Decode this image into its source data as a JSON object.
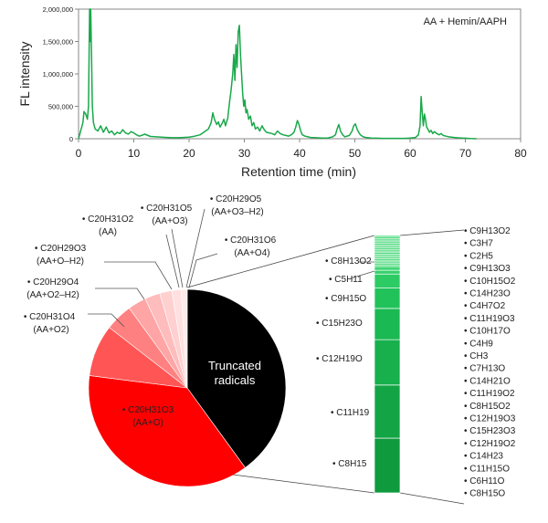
{
  "chart_data": [
    {
      "type": "line",
      "xlabel": "Retention time (min)",
      "ylabel": "FL intensity",
      "legend": "AA + Hemin/AAPH",
      "legend_position": "top-right",
      "xlim": [
        0,
        80
      ],
      "ylim": [
        0,
        2000000
      ],
      "x_ticks": [
        0,
        10,
        20,
        30,
        40,
        50,
        60,
        70,
        80
      ],
      "y_ticks": [
        0,
        500000,
        1000000,
        1500000,
        2000000
      ],
      "x_tick_labels": [
        "0",
        "10",
        "20",
        "30",
        "40",
        "50",
        "60",
        "70",
        "80"
      ],
      "y_tick_labels": [
        "0",
        "500,000",
        "1,000,000",
        "1,500,000",
        "2,000,000"
      ],
      "grid": false,
      "color": "#19a84a",
      "series": [
        {
          "x": [
            0,
            0.8,
            1.0,
            1.3,
            1.6,
            1.8,
            2.0,
            2.1,
            2.2,
            2.35,
            2.5,
            2.7,
            3.0,
            3.5,
            4.0,
            4.5,
            5.0,
            5.5,
            6.0,
            6.5,
            7.0,
            7.5,
            8.0,
            8.5,
            9.0,
            9.5,
            10.0,
            10.5,
            11.0,
            12.0,
            13.0,
            14.0,
            15.0,
            16.0,
            17.0,
            18.0,
            19.0,
            20.0,
            21.0,
            22.0,
            22.5,
            23.0,
            23.5,
            24.0,
            24.3,
            24.6,
            25.0,
            25.3,
            25.6,
            26.0,
            26.3,
            26.6,
            27.0,
            27.3,
            27.6,
            27.9,
            28.1,
            28.3,
            28.5,
            28.7,
            28.9,
            29.1,
            29.3,
            29.5,
            29.7,
            29.9,
            30.1,
            30.3,
            30.5,
            30.8,
            31.1,
            31.4,
            31.7,
            32.0,
            32.4,
            32.8,
            33.2,
            33.6,
            34.0,
            34.5,
            35.0,
            35.5,
            36.0,
            36.5,
            37.0,
            37.5,
            38.0,
            38.5,
            39.0,
            39.3,
            39.6,
            39.9,
            40.2,
            40.5,
            41.0,
            41.5,
            42.0,
            43.0,
            44.0,
            45.0,
            46.0,
            46.5,
            46.8,
            47.1,
            47.4,
            47.8,
            48.2,
            49.0,
            49.5,
            49.8,
            50.1,
            50.4,
            50.7,
            51.0,
            51.5,
            52.0,
            53.0,
            54.0,
            55.0,
            56.0,
            57.0,
            58.0,
            59.0,
            60.0,
            61.0,
            61.5,
            61.8,
            62.0,
            62.2,
            62.4,
            62.6,
            62.8,
            63.0,
            63.2,
            63.5,
            63.8,
            64.1,
            64.4,
            64.7,
            65.0,
            65.3,
            65.6,
            66.0,
            66.5,
            67.0,
            67.5,
            68.0,
            68.5,
            69.0,
            69.5,
            70.0,
            70.5,
            71.0,
            71.5,
            72.0
          ],
          "y": [
            0,
            250000,
            420000,
            380000,
            300000,
            500000,
            2000000,
            1500000,
            2000000,
            1300000,
            500000,
            250000,
            150000,
            120000,
            200000,
            100000,
            180000,
            90000,
            120000,
            60000,
            100000,
            80000,
            140000,
            90000,
            70000,
            110000,
            90000,
            60000,
            40000,
            70000,
            35000,
            30000,
            25000,
            20000,
            15000,
            15000,
            20000,
            25000,
            40000,
            60000,
            90000,
            120000,
            150000,
            250000,
            400000,
            300000,
            220000,
            260000,
            180000,
            240000,
            300000,
            200000,
            320000,
            550000,
            750000,
            1000000,
            1300000,
            900000,
            1450000,
            1100000,
            1650000,
            1750000,
            1300000,
            1000000,
            700000,
            500000,
            600000,
            400000,
            450000,
            300000,
            350000,
            200000,
            250000,
            150000,
            180000,
            120000,
            200000,
            140000,
            100000,
            90000,
            80000,
            60000,
            120000,
            80000,
            60000,
            50000,
            40000,
            60000,
            100000,
            180000,
            280000,
            220000,
            120000,
            60000,
            40000,
            30000,
            20000,
            15000,
            10000,
            10000,
            30000,
            60000,
            150000,
            220000,
            120000,
            60000,
            30000,
            50000,
            120000,
            200000,
            230000,
            150000,
            100000,
            60000,
            30000,
            20000,
            10000,
            8000,
            5000,
            5000,
            5000,
            5000,
            5000,
            10000,
            20000,
            60000,
            200000,
            650000,
            400000,
            200000,
            380000,
            300000,
            180000,
            150000,
            100000,
            130000,
            80000,
            110000,
            90000,
            70000,
            60000,
            80000,
            50000,
            40000,
            30000,
            25000,
            20000,
            15000,
            12000,
            10000,
            8000,
            5000,
            3000,
            2000,
            0
          ]
        }
      ]
    },
    {
      "type": "pie",
      "labels": [
        "Truncated radicals",
        "C20H31O3 (AA+O)",
        "C20H31O4 (AA+O2)",
        "C20H29O4 (AA+O2–H2)",
        "C20H29O3 (AA+O–H2)",
        "C20H31O2 (AA)",
        "C20H31O5 (AA+O3)",
        "C20H29O5 (AA+O3–H2)",
        "C20H31O6 (AA+O4)"
      ],
      "values": [
        40.0,
        37.0,
        8.5,
        4.5,
        3.0,
        2.5,
        2.0,
        1.5,
        1.0
      ],
      "colors": [
        "#000000",
        "#ff0000",
        "#ff5555",
        "#ff8080",
        "#ffa5a5",
        "#ffbcbc",
        "#ffd0d0",
        "#ffe0e0",
        "#ffeaea"
      ],
      "slice_labels": {
        "truncated_l1": "Truncated",
        "truncated_l2": "radicals",
        "aa_o_formula": "• C20H31O3",
        "aa_o_note": "(AA+O)"
      },
      "callouts": [
        {
          "formula": "• C20H31O2",
          "note": "(AA)"
        },
        {
          "formula": "• C20H31O5",
          "note": "(AA+O3)"
        },
        {
          "formula": "• C20H29O5",
          "note": "(AA+O3–H2)"
        },
        {
          "formula": "• C20H29O3",
          "note": "(AA+O–H2)"
        },
        {
          "formula": "• C20H31O6",
          "note": "(AA+O4)"
        },
        {
          "formula": "• C20H29O4",
          "note": "(AA+O2–H2)"
        },
        {
          "formula": "• C20H31O4",
          "note": "(AA+O2)"
        }
      ]
    },
    {
      "type": "bar",
      "stacked": true,
      "description_of_parts": "Breakdown of truncated radicals",
      "bar_segments": [
        "• C6H11O",
        "• C8H15O",
        "• C11H19",
        "• C12H19O",
        "• C15H23O",
        "• C9H15O",
        "• C5H11",
        "• C8H13O2"
      ],
      "segment_values": [
        17.5,
        17.0,
        14.5,
        10.0,
        6.5,
        4.5,
        1.2,
        1.2
      ],
      "side_labels": [
        "• C8H15",
        "• C11H19",
        "• C12H19O",
        "• C15H23O",
        "• C9H15O",
        "• C5H11",
        "• C8H13O2"
      ],
      "minor_list": [
        "• C9H13O2",
        "• C3H7",
        "• C2H5",
        "• C9H13O3",
        "• C10H15O2",
        "• C14H23O",
        "• C4H7O2",
        "• C11H19O3",
        "• C10H17O",
        "• C4H9",
        "• CH3",
        "• C7H13O",
        "• C14H21O",
        "• C11H19O2",
        "• C8H15O2",
        "• C12H19O3",
        "• C15H23O3",
        "• C12H19O2",
        "• C14H23",
        "• C11H15O",
        "• C6H11O",
        "• C8H15O"
      ]
    }
  ]
}
